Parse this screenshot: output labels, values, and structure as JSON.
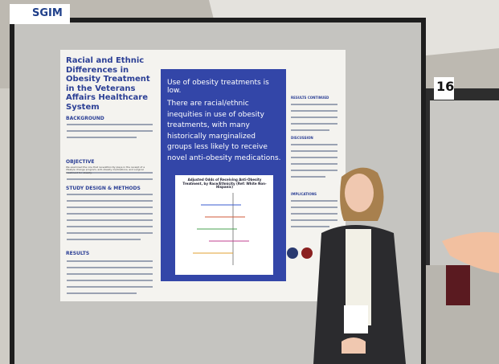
{
  "sign": {
    "logo": "SGIM"
  },
  "booth": {
    "number": "16"
  },
  "poster": {
    "title": "Racial and Ethnic Differences in Obesity Treatment in the Veterans Affairs Healthcare System",
    "left_sections": [
      "BACKGROUND",
      "OBJECTIVE",
      "STUDY DESIGN & METHODS",
      "RESULTS"
    ],
    "objective_text": "We examined the role that race/ethnicity plays in the receipt of a lifestyle change program, anti-obesity medications, and surgical treatment for obesity.",
    "headline": "Use of obesity treatments is low.",
    "key_finding": "There are racial/ethnic inequities in use of obesity treatments, with many historically marginalized groups less likely to receive novel anti-obesity medications.",
    "figure_title": "Adjusted Odds of Receiving Anti-Obesity Treatment, by Race/Ethnicity (Ref: White Non-Hispanic)",
    "right_sections": [
      "RESULTS CONTINUED",
      "DISCUSSION",
      "IMPLICATIONS"
    ]
  }
}
